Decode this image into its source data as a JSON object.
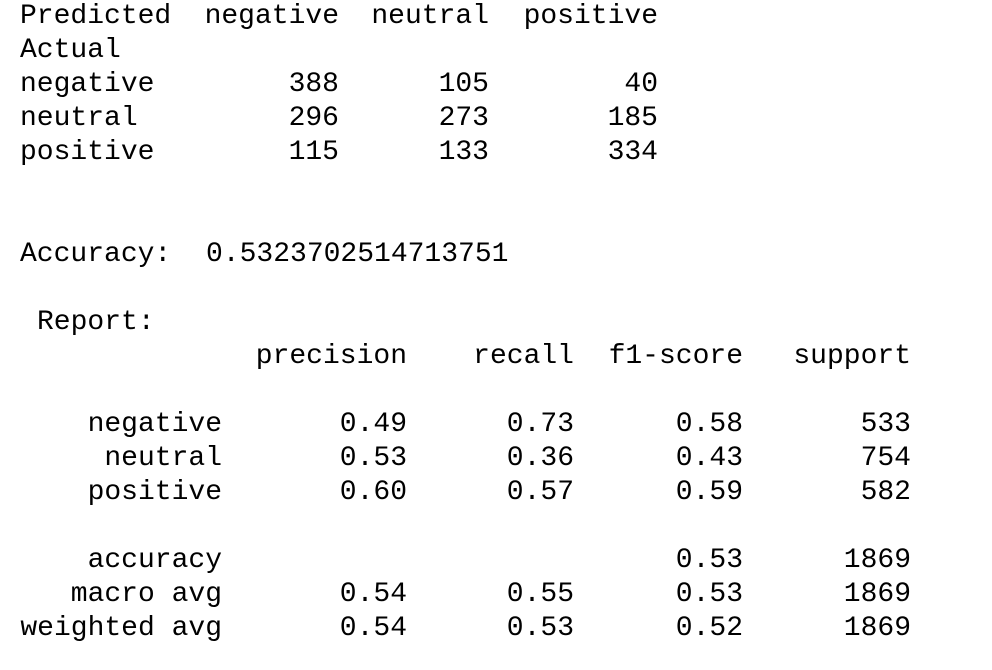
{
  "confusion_matrix": {
    "header": {
      "label": "Predicted",
      "columns": [
        "negative",
        "neutral",
        "positive"
      ]
    },
    "index_name": "Actual",
    "rows": [
      {
        "label": "negative",
        "values": [
          "388",
          "105",
          "40"
        ]
      },
      {
        "label": "neutral",
        "values": [
          "296",
          "273",
          "185"
        ]
      },
      {
        "label": "positive",
        "values": [
          "115",
          "133",
          "334"
        ]
      }
    ]
  },
  "accuracy": {
    "label": "Accuracy:",
    "value": "0.5323702514713751"
  },
  "report": {
    "title": "Report:",
    "columns": [
      "precision",
      "recall",
      "f1-score",
      "support"
    ],
    "class_rows": [
      {
        "label": "negative",
        "precision": "0.49",
        "recall": "0.73",
        "f1": "0.58",
        "support": "533"
      },
      {
        "label": "neutral",
        "precision": "0.53",
        "recall": "0.36",
        "f1": "0.43",
        "support": "754"
      },
      {
        "label": "positive",
        "precision": "0.60",
        "recall": "0.57",
        "f1": "0.59",
        "support": "582"
      }
    ],
    "summary_rows": [
      {
        "label": "accuracy",
        "precision": "",
        "recall": "",
        "f1": "0.53",
        "support": "1869"
      },
      {
        "label": "macro avg",
        "precision": "0.54",
        "recall": "0.55",
        "f1": "0.53",
        "support": "1869"
      },
      {
        "label": "weighted avg",
        "precision": "0.54",
        "recall": "0.53",
        "f1": "0.52",
        "support": "1869"
      }
    ]
  }
}
